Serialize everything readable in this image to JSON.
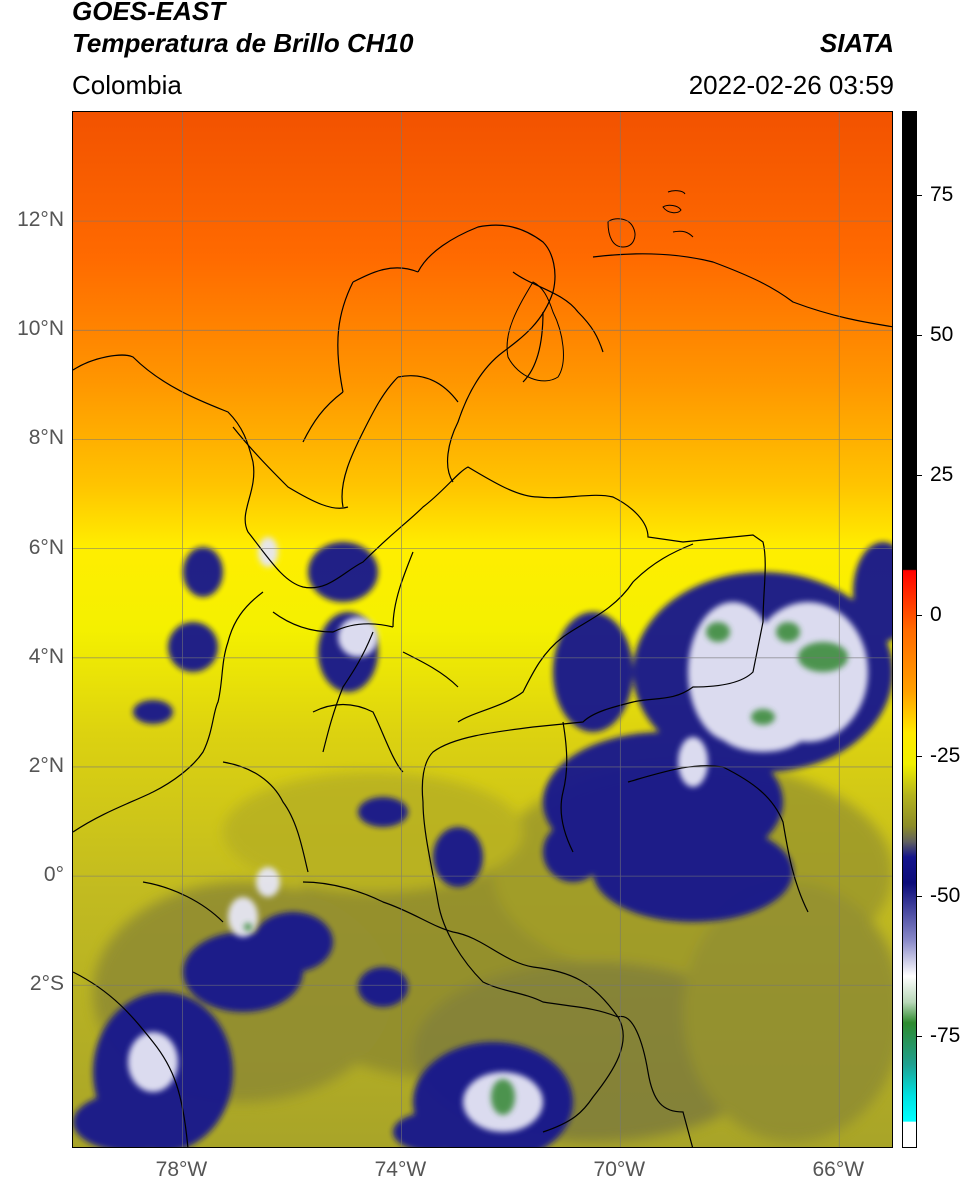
{
  "header": {
    "satellite": "GOES-EAST",
    "product": "Temperatura de Brillo CH10",
    "source": "SIATA",
    "region": "Colombia",
    "datetime": "2022-02-26 03:59"
  },
  "map": {
    "lon_range": [
      -80,
      -65
    ],
    "lat_range": [
      -5,
      14
    ],
    "lon_ticks": [
      {
        "value": -78,
        "label": "78°W"
      },
      {
        "value": -74,
        "label": "74°W"
      },
      {
        "value": -70,
        "label": "70°W"
      },
      {
        "value": -66,
        "label": "66°W"
      }
    ],
    "lat_ticks": [
      {
        "value": 12,
        "label": "12°N"
      },
      {
        "value": 10,
        "label": "10°N"
      },
      {
        "value": 8,
        "label": "8°N"
      },
      {
        "value": 6,
        "label": "6°N"
      },
      {
        "value": 4,
        "label": "4°N"
      },
      {
        "value": 2,
        "label": "2°N"
      },
      {
        "value": 0,
        "label": "0°"
      },
      {
        "value": -2,
        "label": "2°S"
      }
    ],
    "grid": true
  },
  "colorbar": {
    "range": [
      -95,
      90
    ],
    "ticks": [
      {
        "value": 75,
        "label": "75"
      },
      {
        "value": 50,
        "label": "50"
      },
      {
        "value": 25,
        "label": "25"
      },
      {
        "value": 0,
        "label": "0"
      },
      {
        "value": -25,
        "label": "-25"
      },
      {
        "value": -50,
        "label": "-50"
      },
      {
        "value": -75,
        "label": "-75"
      }
    ],
    "colors": {
      "black": "#000000",
      "red": "#e60000",
      "orange": "#ff8c00",
      "yellow": "#f5f500",
      "olive": "#a0a020",
      "gray": "#5c5c5c",
      "navy": "#0c0c8c",
      "white": "#ffffff",
      "green": "#2e8b2e",
      "teal": "#20b2aa",
      "cyan": "#00e5e5"
    }
  }
}
